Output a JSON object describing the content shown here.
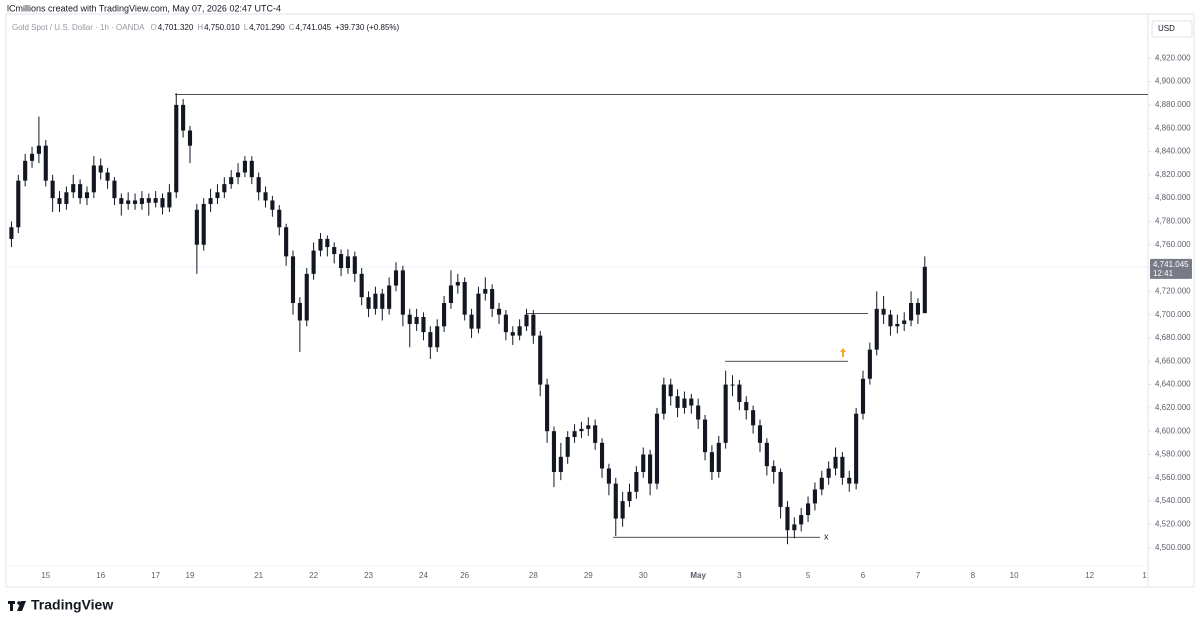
{
  "header": {
    "credit": "lCmillions created with TradingView.com, May 07, 2026 02:47 UTC-4",
    "symbol": "Gold Spot / U.S. Dollar · 1h · OANDA",
    "ohlc": [
      {
        "label": "O",
        "value": "4,701.320"
      },
      {
        "label": "H",
        "value": "4,750.010"
      },
      {
        "label": "L",
        "value": "4,701.290"
      },
      {
        "label": "C",
        "value": "4,741.045"
      }
    ],
    "change": "+39.730 (+0.85%)",
    "currency": "USD"
  },
  "footer": {
    "brand": "TradingView"
  },
  "chart_data": {
    "type": "candlestick",
    "color": "#131722",
    "categories": [
      null,
      null,
      null,
      null,
      null,
      "15",
      null,
      null,
      null,
      null,
      null,
      null,
      null,
      "16",
      null,
      null,
      null,
      null,
      null,
      null,
      null,
      "17",
      null,
      null,
      null,
      null,
      "19",
      null,
      null,
      null,
      null,
      null,
      null,
      null,
      null,
      null,
      "21",
      null,
      null,
      null,
      null,
      null,
      null,
      null,
      "22",
      null,
      null,
      null,
      null,
      null,
      null,
      null,
      "23",
      null,
      null,
      null,
      null,
      null,
      null,
      null,
      "24",
      null,
      null,
      null,
      null,
      null,
      "26",
      null,
      null,
      null,
      null,
      null,
      null,
      null,
      null,
      null,
      "28",
      null,
      null,
      null,
      null,
      null,
      null,
      null,
      "29",
      null,
      null,
      null,
      null,
      null,
      null,
      null,
      "30",
      null,
      null,
      null,
      null,
      null,
      null,
      null,
      "May",
      null,
      null,
      null,
      null,
      null,
      "3",
      null,
      null,
      null,
      null,
      null,
      null,
      null,
      null,
      null,
      "5",
      null,
      null,
      null,
      null,
      null,
      null,
      null,
      "6",
      null,
      null,
      null,
      null,
      null,
      null,
      null,
      "7",
      null,
      null,
      null,
      null,
      null,
      null,
      null,
      "8",
      null,
      null,
      null,
      null,
      null,
      "10",
      null,
      null,
      null,
      null,
      null,
      null,
      null,
      null,
      null,
      null,
      "12",
      null,
      null,
      null,
      null,
      null,
      null,
      null,
      "1"
    ],
    "open": [
      4765,
      4775,
      4815,
      4832,
      4838,
      4845,
      4815,
      4800,
      4795,
      4805,
      4812,
      4800,
      4805,
      4828,
      4822,
      4815,
      4800,
      4795,
      4798,
      4795,
      4800,
      4796,
      4800,
      4792,
      4805,
      4880,
      4858,
      4790,
      4760,
      4795,
      4800,
      4805,
      4812,
      4818,
      4822,
      4832,
      4818,
      4805,
      4798,
      4790,
      4775,
      4750,
      4710,
      4695,
      4735,
      4755,
      4765,
      4758,
      4752,
      4740,
      4750,
      4735,
      4715,
      4705,
      4718,
      4705,
      4725,
      4738,
      4700,
      4692,
      4698,
      4685,
      4672,
      4690,
      4710,
      4725,
      4728,
      4700,
      4688,
      4718,
      4722,
      4705,
      4700,
      4685,
      4682,
      4690,
      4700,
      4682,
      4640,
      4600,
      4565,
      4578,
      4595,
      4600,
      4602,
      4605,
      4590,
      4568,
      4555,
      4525,
      4540,
      4548,
      4565,
      4580,
      4555,
      4615,
      4640,
      4630,
      4620,
      4628,
      4622,
      4610,
      4582,
      4565,
      4590,
      4640,
      4640,
      4625,
      4618,
      4605,
      4590,
      4570,
      4565,
      4535,
      4515,
      4520,
      4528,
      4538,
      4550,
      4560,
      4568,
      4578,
      4560,
      4555,
      4615,
      4645,
      4670,
      4705,
      4700,
      4690,
      4692,
      4695,
      4710,
      4701.32,
      null,
      null,
      null,
      null,
      null,
      null,
      null,
      null,
      null,
      null,
      null,
      null,
      null,
      null,
      null,
      null,
      null,
      null,
      null,
      null,
      null,
      null,
      null,
      null,
      null,
      null,
      null,
      null,
      null,
      null,
      null,
      null
    ],
    "high": [
      4780,
      4820,
      4838,
      4844,
      4870,
      4850,
      4820,
      4806,
      4810,
      4820,
      4816,
      4810,
      4836,
      4834,
      4826,
      4818,
      4804,
      4805,
      4804,
      4806,
      4804,
      4806,
      4804,
      4812,
      4890,
      4885,
      4862,
      4795,
      4800,
      4808,
      4812,
      4818,
      4824,
      4830,
      4836,
      4836,
      4822,
      4810,
      4802,
      4794,
      4778,
      4755,
      4715,
      4740,
      4762,
      4770,
      4768,
      4762,
      4756,
      4756,
      4754,
      4740,
      4720,
      4724,
      4722,
      4732,
      4745,
      4742,
      4705,
      4705,
      4702,
      4690,
      4696,
      4716,
      4738,
      4735,
      4732,
      4705,
      4724,
      4732,
      4726,
      4710,
      4704,
      4690,
      4696,
      4705,
      4704,
      4686,
      4645,
      4604,
      4590,
      4600,
      4606,
      4608,
      4612,
      4610,
      4594,
      4572,
      4560,
      4548,
      4555,
      4570,
      4586,
      4584,
      4620,
      4646,
      4645,
      4636,
      4634,
      4632,
      4628,
      4614,
      4588,
      4596,
      4652,
      4648,
      4644,
      4630,
      4622,
      4610,
      4594,
      4575,
      4568,
      4540,
      4526,
      4534,
      4544,
      4556,
      4566,
      4574,
      4586,
      4582,
      4566,
      4620,
      4652,
      4676,
      4720,
      4716,
      4704,
      4700,
      4702,
      4720,
      4714,
      4750.01,
      null,
      null,
      null,
      null,
      null,
      null,
      null,
      null,
      null,
      null,
      null,
      null,
      null,
      null,
      null,
      null,
      null,
      null,
      null,
      null,
      null,
      null,
      null,
      null,
      null,
      null,
      null,
      null,
      null,
      null,
      null,
      null
    ],
    "low": [
      4758,
      4770,
      4810,
      4826,
      4830,
      4810,
      4788,
      4788,
      4790,
      4800,
      4795,
      4794,
      4800,
      4816,
      4808,
      4794,
      4785,
      4790,
      4790,
      4790,
      4785,
      4792,
      4786,
      4788,
      4800,
      4852,
      4830,
      4735,
      4755,
      4788,
      4795,
      4800,
      4808,
      4812,
      4818,
      4812,
      4798,
      4792,
      4784,
      4768,
      4742,
      4700,
      4668,
      4690,
      4730,
      4750,
      4750,
      4744,
      4733,
      4735,
      4728,
      4708,
      4698,
      4700,
      4695,
      4700,
      4720,
      4690,
      4672,
      4686,
      4678,
      4662,
      4668,
      4685,
      4705,
      4718,
      4695,
      4680,
      4684,
      4712,
      4698,
      4692,
      4678,
      4674,
      4678,
      4686,
      4675,
      4630,
      4590,
      4552,
      4558,
      4572,
      4590,
      4594,
      4596,
      4584,
      4560,
      4545,
      4510,
      4518,
      4535,
      4542,
      4560,
      4545,
      4550,
      4610,
      4622,
      4612,
      4615,
      4615,
      4602,
      4575,
      4558,
      4560,
      4585,
      4630,
      4618,
      4610,
      4598,
      4582,
      4562,
      4555,
      4525,
      4503,
      4508,
      4514,
      4522,
      4532,
      4545,
      4554,
      4562,
      4554,
      4548,
      4550,
      4610,
      4640,
      4665,
      4692,
      4682,
      4684,
      4686,
      4690,
      4692,
      4701.29,
      null,
      null,
      null,
      null,
      null,
      null,
      null,
      null,
      null,
      null,
      null,
      null,
      null,
      null,
      null,
      null,
      null,
      null,
      null,
      null,
      null,
      null,
      null,
      null,
      null,
      null,
      null,
      null,
      null,
      null,
      null,
      null
    ],
    "close": [
      4775,
      4815,
      4832,
      4838,
      4845,
      4815,
      4800,
      4795,
      4805,
      4812,
      4800,
      4805,
      4828,
      4822,
      4815,
      4800,
      4795,
      4798,
      4795,
      4800,
      4796,
      4800,
      4792,
      4805,
      4880,
      4858,
      4845,
      4760,
      4795,
      4800,
      4805,
      4812,
      4818,
      4822,
      4832,
      4818,
      4805,
      4798,
      4790,
      4775,
      4750,
      4710,
      4695,
      4735,
      4755,
      4765,
      4758,
      4752,
      4740,
      4750,
      4735,
      4715,
      4705,
      4718,
      4705,
      4725,
      4738,
      4700,
      4692,
      4698,
      4685,
      4672,
      4690,
      4710,
      4725,
      4728,
      4700,
      4688,
      4718,
      4722,
      4705,
      4700,
      4685,
      4682,
      4690,
      4700,
      4682,
      4640,
      4600,
      4565,
      4578,
      4595,
      4600,
      4602,
      4605,
      4590,
      4568,
      4555,
      4525,
      4540,
      4548,
      4565,
      4580,
      4555,
      4615,
      4640,
      4630,
      4620,
      4628,
      4622,
      4610,
      4582,
      4565,
      4590,
      4640,
      4640,
      4625,
      4618,
      4605,
      4590,
      4570,
      4565,
      4535,
      4515,
      4520,
      4528,
      4538,
      4550,
      4560,
      4568,
      4578,
      4560,
      4555,
      4615,
      4645,
      4670,
      4705,
      4700,
      4690,
      4692,
      4695,
      4710,
      4700,
      4741.045,
      null,
      null,
      null,
      null,
      null,
      null,
      null,
      null,
      null,
      null,
      null,
      null,
      null,
      null,
      null,
      null,
      null,
      null,
      null,
      null,
      null,
      null,
      null,
      null,
      null,
      null,
      null,
      null,
      null,
      null,
      null,
      null
    ],
    "ylim": [
      4468,
      4958
    ],
    "yticks": [
      {
        "value": 4500,
        "label": "4,500.000"
      },
      {
        "value": 4520,
        "label": "4,520.000"
      },
      {
        "value": 4540,
        "label": "4,540.000"
      },
      {
        "value": 4560,
        "label": "4,560.000"
      },
      {
        "value": 4580,
        "label": "4,580.000"
      },
      {
        "value": 4600,
        "label": "4,600.000"
      },
      {
        "value": 4620,
        "label": "4,620.000"
      },
      {
        "value": 4640,
        "label": "4,640.000"
      },
      {
        "value": 4660,
        "label": "4,660.000"
      },
      {
        "value": 4680,
        "label": "4,680.000"
      },
      {
        "value": 4700,
        "label": "4,700.000"
      },
      {
        "value": 4720,
        "label": "4,720.000"
      },
      {
        "value": 4740,
        "label": "4,740.000"
      },
      {
        "value": 4760,
        "label": "4,760.000"
      },
      {
        "value": 4780,
        "label": "4,780.000"
      },
      {
        "value": 4800,
        "label": "4,800.000"
      },
      {
        "value": 4820,
        "label": "4,820.000"
      },
      {
        "value": 4840,
        "label": "4,840.000"
      },
      {
        "value": 4860,
        "label": "4,860.000"
      },
      {
        "value": 4880,
        "label": "4,880.000"
      },
      {
        "value": 4900,
        "label": "4,900.000"
      },
      {
        "value": 4920,
        "label": "4,920.000"
      }
    ],
    "grid": false,
    "levels": [
      {
        "value": 4889
      },
      {
        "value": 4701
      },
      {
        "value": 4660
      },
      {
        "value": 4509,
        "label": "x"
      }
    ],
    "last_price": {
      "value": 4741.045,
      "label": "4,741.045",
      "countdown": "12:41"
    }
  }
}
